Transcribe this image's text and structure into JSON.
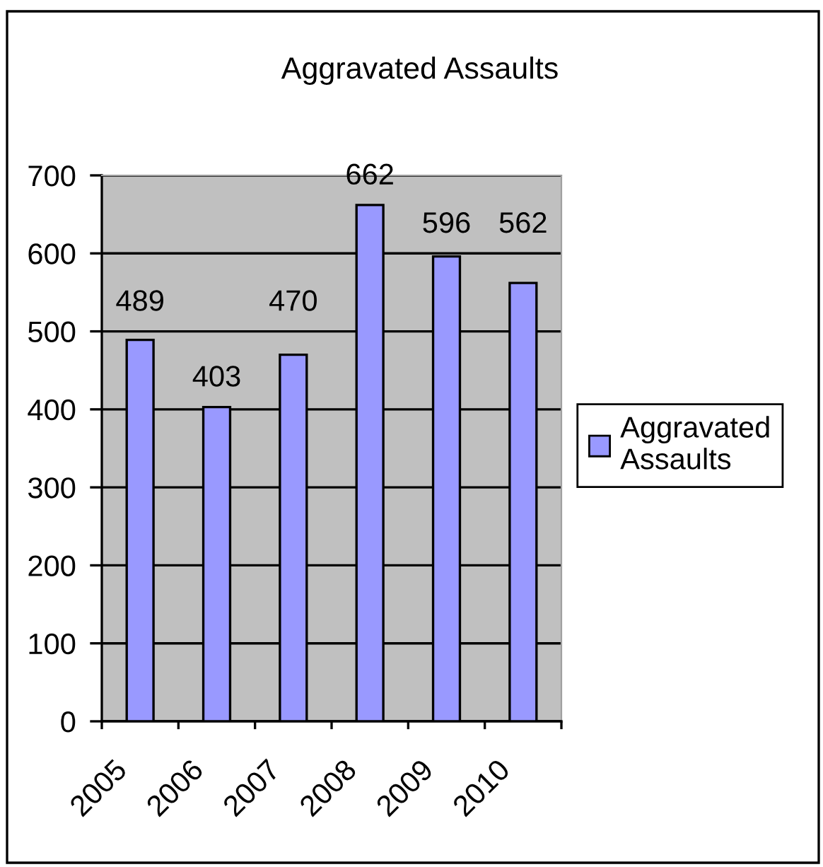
{
  "chart_data": {
    "type": "bar",
    "title": "Aggravated Assaults",
    "categories": [
      "2005",
      "2006",
      "2007",
      "2008",
      "2009",
      "2010"
    ],
    "series": [
      {
        "name": "Aggravated Assaults",
        "color": "#9999ff",
        "values": [
          489,
          403,
          470,
          662,
          596,
          562
        ]
      }
    ],
    "ylim": [
      0,
      700
    ],
    "yticks": [
      0,
      100,
      200,
      300,
      400,
      500,
      600,
      700
    ],
    "grid": "y",
    "legend": "right",
    "data_labels": true
  }
}
